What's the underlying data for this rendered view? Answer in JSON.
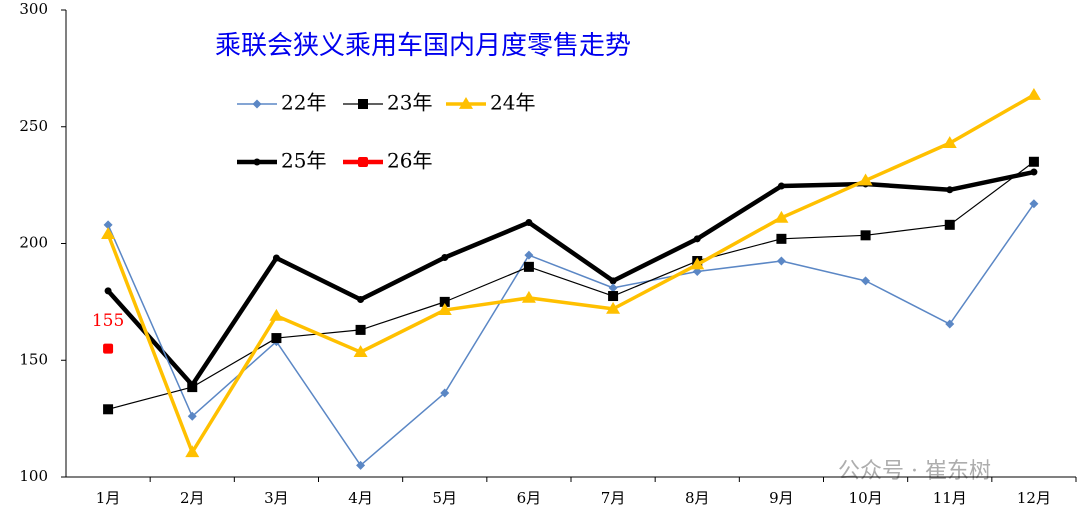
{
  "chart_data": {
    "type": "line",
    "title": "乘联会狭义乘用车国内月度零售走势",
    "categories": [
      "1月",
      "2月",
      "3月",
      "4月",
      "5月",
      "6月",
      "7月",
      "8月",
      "9月",
      "10月",
      "11月",
      "12月"
    ],
    "series": [
      {
        "name": "22年",
        "color": "#5b87c5",
        "values": [
          208,
          126,
          158,
          105,
          136,
          195,
          181,
          188,
          192.5,
          184,
          165.5,
          217
        ]
      },
      {
        "name": "23年",
        "color": "#000000",
        "values": [
          129,
          138.5,
          159.5,
          163,
          175,
          190,
          177.5,
          192.5,
          202,
          203.5,
          208,
          235
        ]
      },
      {
        "name": "24年",
        "color": "#ffc000",
        "values": [
          204,
          110.6,
          169,
          153.5,
          171.5,
          176.7,
          172,
          191,
          211,
          227,
          243,
          263.6
        ]
      },
      {
        "name": "25年",
        "color": "#000000",
        "values": [
          179.7,
          139.4,
          193.8,
          176,
          194,
          209,
          184,
          202,
          224.6,
          225.5,
          223,
          230.6
        ]
      },
      {
        "name": "26年",
        "color": "#ff0000",
        "values": [
          155,
          null,
          null,
          null,
          null,
          null,
          null,
          null,
          null,
          null,
          null,
          null
        ],
        "value_labels": [
          "155",
          null,
          null,
          null,
          null,
          null,
          null,
          null,
          null,
          null,
          null,
          null
        ]
      }
    ],
    "ylim": [
      100,
      300
    ],
    "yticks": [
      100,
      150,
      200,
      250,
      300
    ],
    "grid": false,
    "watermark": "公众号 · 崔东树"
  }
}
